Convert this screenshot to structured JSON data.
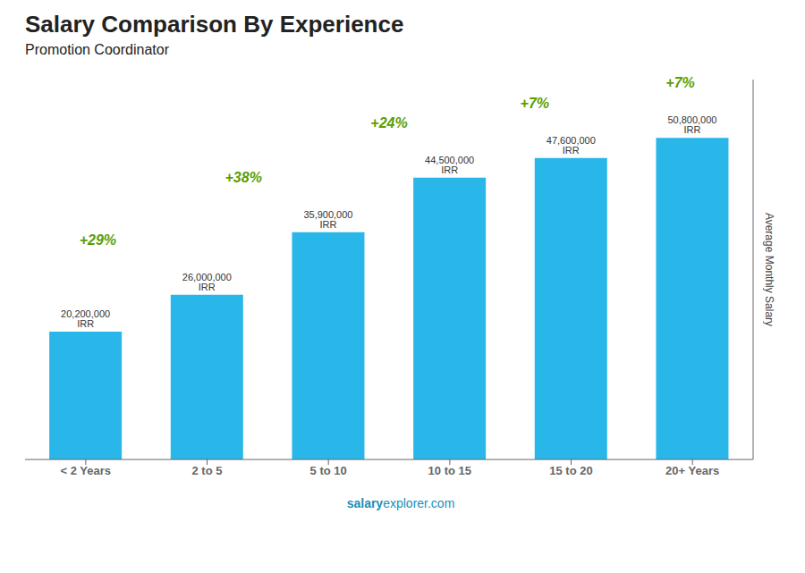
{
  "chart_data": {
    "type": "bar",
    "title": "Salary Comparison By Experience",
    "subtitle": "Promotion Coordinator",
    "categories": [
      "< 2 Years",
      "2 to 5",
      "5 to 10",
      "10 to 15",
      "15 to 20",
      "20+ Years"
    ],
    "values": [
      20200000,
      26000000,
      35900000,
      44500000,
      47600000,
      50800000
    ],
    "value_labels": [
      "20,200,000 IRR",
      "26,000,000 IRR",
      "35,900,000 IRR",
      "44,500,000 IRR",
      "47,600,000 IRR",
      "50,800,000 IRR"
    ],
    "data_labels": true,
    "color": "#29b6e8",
    "ylabel": "Average Monthly Salary",
    "ylim": [
      0,
      60000000
    ],
    "tick_labels": "x",
    "grid": false,
    "annotations": [
      {
        "text": "+29%",
        "from": "< 2 Years",
        "to": "2 to 5"
      },
      {
        "text": "+38%",
        "from": "2 to 5",
        "to": "5 to 10"
      },
      {
        "text": "+24%",
        "from": "5 to 10",
        "to": "10 to 15"
      },
      {
        "text": "+7%",
        "from": "10 to 15",
        "to": "15 to 20"
      },
      {
        "text": "+7%",
        "from": "15 to 20",
        "to": "20+ Years"
      }
    ],
    "footer": [
      "salary",
      "explorer.com"
    ]
  }
}
